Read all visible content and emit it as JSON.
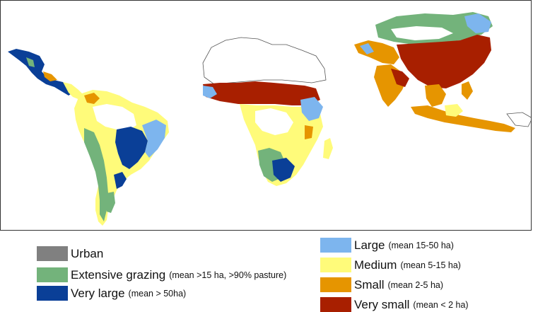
{
  "colors": {
    "urban": "#808080",
    "extensive_grazing": "#73b37b",
    "very_large": "#0a3f97",
    "large": "#7db5ee",
    "medium": "#fffb7a",
    "small": "#e69500",
    "very_small": "#a81f00",
    "unmapped": "#ffffff",
    "outline": "#555555"
  },
  "legend": {
    "left": [
      {
        "key": "urban",
        "label": "Urban",
        "note": ""
      },
      {
        "key": "extensive_grazing",
        "label": "Extensive grazing",
        "note": "(mean >15 ha, >90% pasture)"
      },
      {
        "key": "very_large",
        "label": "Very large",
        "note": "(mean > 50ha)"
      }
    ],
    "right": [
      {
        "key": "large",
        "label": "Large",
        "note": "(mean 15-50 ha)"
      },
      {
        "key": "medium",
        "label": "Medium",
        "note": "(mean 5-15 ha)"
      },
      {
        "key": "small",
        "label": "Small",
        "note": "(mean 2-5 ha)"
      },
      {
        "key": "very_small",
        "label": "Very small",
        "note": "(mean < 2 ha)"
      }
    ]
  },
  "regions": [
    "Latin America",
    "Africa",
    "Asia"
  ]
}
